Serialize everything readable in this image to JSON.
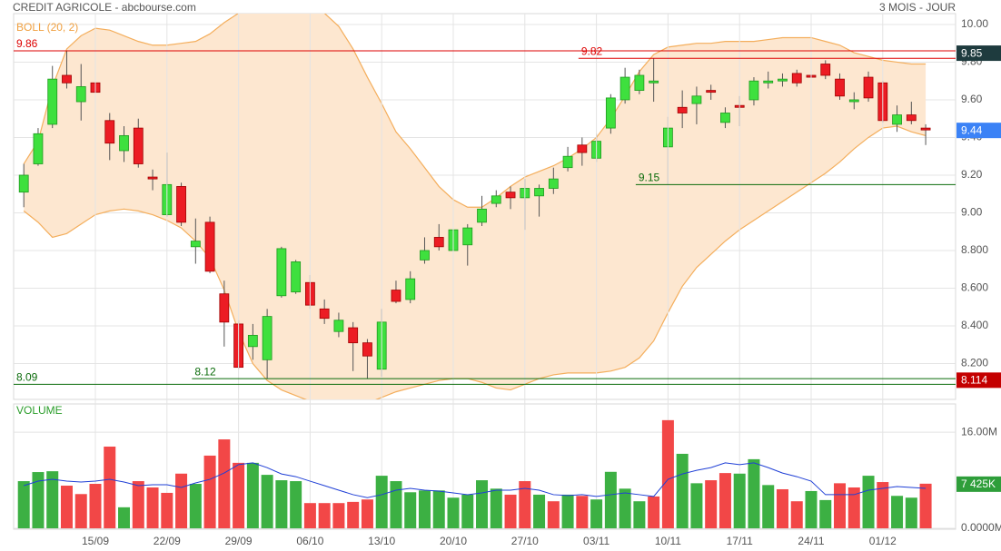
{
  "title": "CREDIT AGRICOLE - abcbourse.com",
  "period": "3 MOIS - JOUR",
  "chart_data": [
    {
      "type": "candlestick",
      "categories": [
        null,
        null,
        null,
        null,
        null,
        "15/09",
        null,
        null,
        null,
        null,
        "22/09",
        null,
        null,
        null,
        null,
        "29/09",
        null,
        null,
        null,
        null,
        "06/10",
        null,
        null,
        null,
        null,
        "13/10",
        null,
        null,
        null,
        null,
        "20/10",
        null,
        null,
        null,
        null,
        "27/10",
        null,
        null,
        null,
        null,
        "03/11",
        null,
        null,
        null,
        null,
        "10/11",
        null,
        null,
        null,
        null,
        "17/11",
        null,
        null,
        null,
        null,
        "24/11",
        null,
        null,
        null,
        null,
        "01/12",
        null,
        null,
        null
      ],
      "open": [
        9.11,
        9.26,
        9.47,
        9.73,
        9.59,
        9.69,
        9.49,
        9.33,
        9.45,
        9.19,
        8.99,
        9.14,
        8.82,
        8.95,
        8.57,
        8.41,
        8.29,
        8.22,
        8.56,
        8.58,
        8.63,
        8.49,
        8.37,
        8.39,
        8.31,
        8.17,
        8.59,
        8.54,
        8.75,
        8.87,
        8.8,
        8.83,
        8.95,
        9.05,
        9.11,
        9.08,
        9.09,
        9.13,
        9.24,
        9.36,
        9.29,
        9.45,
        9.6,
        9.65,
        9.69,
        9.35,
        9.56,
        9.58,
        9.65,
        9.48,
        9.57,
        9.6,
        9.69,
        9.7,
        9.74,
        9.73,
        9.79,
        9.71,
        9.59,
        9.72,
        9.69,
        9.47,
        9.52,
        9.45
      ],
      "high": [
        9.26,
        9.45,
        9.78,
        9.86,
        9.79,
        9.79,
        9.53,
        9.46,
        9.5,
        9.23,
        9.32,
        9.16,
        8.97,
        8.98,
        8.64,
        8.43,
        8.41,
        8.49,
        8.82,
        8.75,
        8.67,
        8.54,
        8.47,
        8.42,
        8.33,
        8.49,
        8.64,
        8.69,
        8.87,
        8.94,
        8.95,
        8.94,
        9.09,
        9.12,
        9.14,
        9.18,
        9.15,
        9.24,
        9.35,
        9.4,
        9.42,
        9.63,
        9.77,
        9.76,
        9.82,
        9.51,
        9.65,
        9.67,
        9.68,
        9.56,
        9.62,
        9.72,
        9.75,
        9.74,
        9.76,
        9.8,
        9.81,
        9.74,
        9.64,
        9.75,
        9.7,
        9.57,
        9.59,
        9.47
      ],
      "low": [
        9.03,
        9.25,
        9.45,
        9.66,
        9.49,
        9.62,
        9.28,
        9.27,
        9.24,
        9.12,
        8.98,
        8.93,
        8.73,
        8.68,
        8.29,
        8.17,
        8.22,
        8.12,
        8.55,
        8.57,
        8.49,
        8.41,
        8.34,
        8.16,
        8.12,
        8.13,
        8.52,
        8.52,
        8.73,
        8.8,
        8.77,
        8.72,
        8.93,
        9.03,
        9.02,
        8.91,
        8.98,
        9.1,
        9.22,
        9.25,
        9.27,
        9.42,
        9.58,
        9.63,
        9.59,
        9.15,
        9.45,
        9.47,
        9.6,
        9.45,
        9.46,
        9.57,
        9.66,
        9.67,
        9.67,
        9.69,
        9.71,
        9.6,
        9.55,
        9.59,
        9.48,
        9.43,
        9.47,
        9.36
      ],
      "close": [
        9.2,
        9.42,
        9.71,
        9.69,
        9.67,
        9.64,
        9.37,
        9.41,
        9.26,
        9.18,
        9.15,
        8.95,
        8.85,
        8.69,
        8.42,
        8.18,
        8.35,
        8.45,
        8.81,
        8.74,
        8.51,
        8.44,
        8.43,
        8.31,
        8.24,
        8.42,
        8.53,
        8.65,
        8.8,
        8.82,
        8.91,
        8.92,
        9.02,
        9.09,
        9.08,
        9.13,
        9.13,
        9.18,
        9.3,
        9.32,
        9.38,
        9.61,
        9.72,
        9.73,
        9.7,
        9.45,
        9.53,
        9.62,
        9.64,
        9.53,
        9.56,
        9.7,
        9.7,
        9.71,
        9.69,
        9.72,
        9.73,
        9.62,
        9.6,
        9.61,
        9.49,
        9.52,
        9.49,
        9.44
      ],
      "up_color": "#3ee03e",
      "down_color": "#ec1c24",
      "indicator": {
        "name": "BOLL (20, 2)",
        "color": "#f4ae5c",
        "fill": "#fde7d0",
        "upper": [
          9.26,
          9.38,
          9.67,
          9.87,
          9.94,
          9.98,
          9.97,
          9.94,
          9.91,
          9.89,
          9.89,
          9.9,
          9.91,
          9.95,
          10.01,
          10.06,
          10.09,
          10.11,
          10.11,
          10.11,
          10.09,
          10.06,
          9.99,
          9.87,
          9.72,
          9.58,
          9.43,
          9.34,
          9.24,
          9.14,
          9.07,
          9.03,
          9.03,
          9.08,
          9.14,
          9.19,
          9.22,
          9.25,
          9.29,
          9.34,
          9.4,
          9.5,
          9.62,
          9.75,
          9.84,
          9.88,
          9.89,
          9.9,
          9.9,
          9.91,
          9.91,
          9.91,
          9.92,
          9.93,
          9.93,
          9.93,
          9.91,
          9.89,
          9.85,
          9.83,
          9.81,
          9.8,
          9.79,
          9.79
        ],
        "lower": [
          9.01,
          8.95,
          8.87,
          8.89,
          8.94,
          8.99,
          9.01,
          9.02,
          9.01,
          8.99,
          8.96,
          8.92,
          8.85,
          8.76,
          8.59,
          8.37,
          8.2,
          8.11,
          8.06,
          8.03,
          8.0,
          7.97,
          7.96,
          7.96,
          7.99,
          8.02,
          8.05,
          8.07,
          8.09,
          8.11,
          8.12,
          8.12,
          8.1,
          8.07,
          8.06,
          8.09,
          8.12,
          8.14,
          8.15,
          8.15,
          8.15,
          8.16,
          8.18,
          8.23,
          8.32,
          8.47,
          8.61,
          8.71,
          8.78,
          8.85,
          8.91,
          8.96,
          9.01,
          9.06,
          9.11,
          9.16,
          9.21,
          9.27,
          9.34,
          9.4,
          9.45,
          9.46,
          9.43,
          9.41
        ]
      },
      "levels": [
        {
          "value": 9.86,
          "label": "9.86",
          "color": "#dd0000"
        },
        {
          "value": 9.82,
          "label": "9.82",
          "color": "#dd0000",
          "from": 39
        },
        {
          "value": 9.15,
          "label": "9.15",
          "color": "#0a6b0a",
          "from": 43
        },
        {
          "value": 8.12,
          "label": "8.12",
          "color": "#0a6b0a",
          "from": 12
        },
        {
          "value": 8.09,
          "label": "8.09",
          "color": "#0a6b0a"
        }
      ],
      "markers": [
        {
          "value": 9.85,
          "label": "9.85",
          "color": "#1e3b3e"
        },
        {
          "value": 9.44,
          "label": "9.44",
          "color": "#3b82f6"
        },
        {
          "value": 8.114,
          "label": "8.114",
          "color": "#c40000"
        }
      ],
      "ylim": [
        8.0,
        10.06
      ],
      "yticks": [
        {
          "value": 8.2,
          "label": "8.200"
        },
        {
          "value": 8.4,
          "label": "8.400"
        },
        {
          "value": 8.6,
          "label": "8.600"
        },
        {
          "value": 8.8,
          "label": "8.800"
        },
        {
          "value": 9.0,
          "label": "9.00"
        },
        {
          "value": 9.2,
          "label": "9.20"
        },
        {
          "value": 9.4,
          "label": "9.40"
        },
        {
          "value": 9.6,
          "label": "9.60"
        },
        {
          "value": 9.8,
          "label": "9.80"
        },
        {
          "value": 10,
          "label": "10.00"
        }
      ],
      "grid": true
    },
    {
      "type": "bar",
      "name": "VOLUME",
      "values": [
        7.85,
        9.36,
        9.5,
        7.1,
        5.7,
        7.4,
        13.6,
        3.5,
        7.85,
        6.8,
        5.9,
        9.1,
        7.4,
        12.1,
        14.8,
        10.9,
        10.9,
        8.9,
        8.0,
        7.85,
        4.2,
        4.2,
        4.2,
        4.4,
        4.8,
        8.75,
        7.85,
        6.0,
        6.3,
        6.3,
        5.1,
        5.6,
        8.0,
        6.6,
        5.6,
        7.85,
        5.6,
        4.5,
        5.6,
        5.4,
        4.8,
        9.4,
        6.6,
        4.5,
        5.3,
        18.0,
        12.4,
        7.5,
        8.0,
        9.2,
        9.1,
        11.5,
        7.2,
        6.5,
        4.5,
        6.2,
        4.7,
        7.5,
        6.8,
        8.75,
        7.7,
        5.4,
        5.1,
        7.425
      ],
      "directions": [
        "up",
        "up",
        "up",
        "down",
        "down",
        "down",
        "down",
        "up",
        "down",
        "down",
        "down",
        "down",
        "up",
        "down",
        "down",
        "down",
        "up",
        "up",
        "up",
        "up",
        "down",
        "down",
        "down",
        "down",
        "down",
        "up",
        "up",
        "up",
        "up",
        "up",
        "up",
        "up",
        "up",
        "up",
        "down",
        "down",
        "up",
        "down",
        "up",
        "down",
        "up",
        "up",
        "up",
        "up",
        "down",
        "down",
        "up",
        "up",
        "down",
        "down",
        "up",
        "up",
        "up",
        "down",
        "down",
        "up",
        "up",
        "down",
        "down",
        "up",
        "down",
        "up",
        "up",
        "down"
      ],
      "up_color": "#3cb043",
      "down_color": "#f24747",
      "average": {
        "color": "#1f3fd6",
        "values": [
          7.1,
          7.85,
          8.15,
          7.85,
          7.7,
          7.85,
          8.15,
          7.7,
          7.1,
          7.25,
          7.25,
          6.8,
          7.55,
          8.15,
          9.2,
          10.6,
          10.9,
          10.1,
          9.05,
          8.6,
          7.85,
          7.1,
          6.35,
          5.6,
          5.1,
          5.6,
          6.35,
          6.65,
          6.35,
          6.2,
          5.9,
          5.6,
          5.9,
          6.35,
          6.35,
          6.65,
          6.35,
          5.6,
          5.45,
          5.6,
          5.3,
          5.6,
          5.9,
          5.6,
          5.3,
          8.15,
          9.05,
          9.65,
          10.1,
          10.9,
          10.6,
          10.9,
          10.1,
          9.2,
          8.6,
          7.85,
          5.6,
          5.6,
          5.6,
          6.35,
          6.65,
          6.95,
          6.8,
          6.65
        ]
      },
      "markers": [
        {
          "value": 7.425,
          "label": "7 425K",
          "color": "#2e9e3a"
        }
      ],
      "ylim": [
        0,
        20.7
      ],
      "yticks": [
        {
          "value": 0,
          "label": "0.0000M"
        },
        {
          "value": 16,
          "label": "16.00M"
        }
      ],
      "grid": true
    }
  ]
}
